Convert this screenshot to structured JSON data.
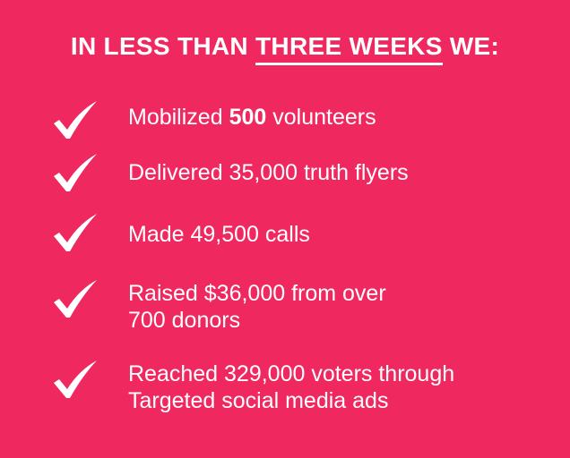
{
  "header": {
    "title_before": "IN LESS THAN",
    "title_underlined": "THREE WEEKS",
    "title_after": "WE:"
  },
  "items": [
    {
      "before": "Mobilized",
      "bold": "500",
      "after": "volunteers"
    },
    {
      "lines": [
        "Delivered 35,000 truth flyers"
      ]
    },
    {
      "lines": [
        "Made 49,500 calls"
      ]
    },
    {
      "lines": [
        "Raised $36,000 from over",
        "700 donors"
      ]
    },
    {
      "lines": [
        "Reached 329,000 voters through",
        "Targeted social media ads"
      ]
    }
  ]
}
